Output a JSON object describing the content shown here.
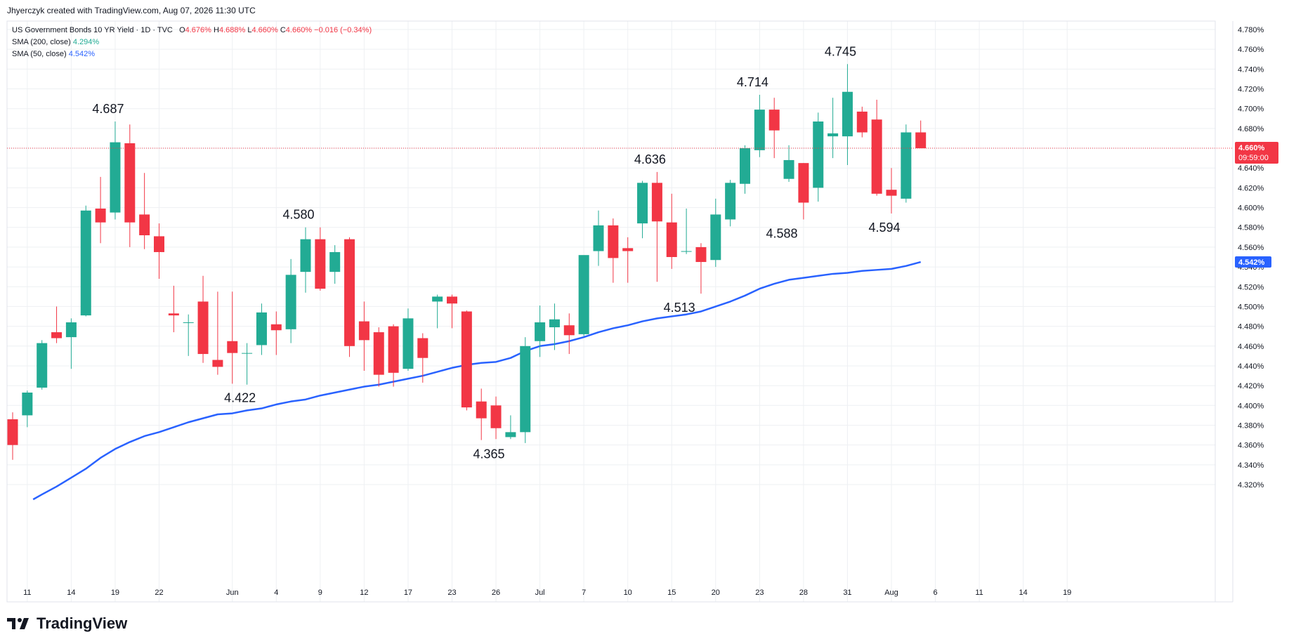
{
  "header": {
    "credit": "Jhyerczyk created with TradingView.com, Aug 07, 2026 11:30 UTC"
  },
  "legend": {
    "symbol": "US Government Bonds 10 YR Yield · 1D · TVC",
    "o_label": "O",
    "o_value": "4.676%",
    "h_label": "H",
    "h_value": "4.688%",
    "l_label": "L",
    "l_value": "4.660%",
    "c_label": "C",
    "c_value": "4.660%",
    "change": "−0.016 (−0.34%)",
    "sma200_label": "SMA (200, close)",
    "sma200_value": "4.294%",
    "sma50_label": "SMA (50, close)",
    "sma50_value": "4.542%"
  },
  "footer": {
    "brand": "TradingView"
  },
  "colors": {
    "up": "#22ab94",
    "down": "#f23645",
    "sma50": "#2962ff",
    "grid": "#eef0f3"
  },
  "price_tag": {
    "price": "4.660%",
    "countdown": "09:59:00"
  },
  "sma_tag": "4.542%",
  "chart_data": {
    "type": "candlestick",
    "y_unit": "%",
    "ylim": [
      4.305,
      4.79
    ],
    "yticks": [
      "4.320%",
      "4.340%",
      "4.360%",
      "4.380%",
      "4.400%",
      "4.420%",
      "4.440%",
      "4.460%",
      "4.480%",
      "4.500%",
      "4.520%",
      "4.540%",
      "4.560%",
      "4.580%",
      "4.600%",
      "4.620%",
      "4.640%",
      "4.660%",
      "4.680%",
      "4.700%",
      "4.720%",
      "4.740%",
      "4.760%",
      "4.780%"
    ],
    "xticks": [
      {
        "i": 1,
        "label": "11"
      },
      {
        "i": 4,
        "label": "14"
      },
      {
        "i": 7,
        "label": "19"
      },
      {
        "i": 10,
        "label": "22"
      },
      {
        "i": 15,
        "label": "Jun"
      },
      {
        "i": 18,
        "label": "4"
      },
      {
        "i": 21,
        "label": "9"
      },
      {
        "i": 24,
        "label": "12"
      },
      {
        "i": 27,
        "label": "17"
      },
      {
        "i": 30,
        "label": "23"
      },
      {
        "i": 33,
        "label": "26"
      },
      {
        "i": 36,
        "label": "Jul"
      },
      {
        "i": 39,
        "label": "7"
      },
      {
        "i": 42,
        "label": "10"
      },
      {
        "i": 45,
        "label": "15"
      },
      {
        "i": 48,
        "label": "20"
      },
      {
        "i": 51,
        "label": "23"
      },
      {
        "i": 54,
        "label": "28"
      },
      {
        "i": 57,
        "label": "31"
      },
      {
        "i": 60,
        "label": "Aug"
      },
      {
        "i": 63,
        "label": "6"
      },
      {
        "i": 66,
        "label": "11"
      },
      {
        "i": 69,
        "label": "14"
      },
      {
        "i": 72,
        "label": "19"
      }
    ],
    "candles": [
      {
        "o": 4.386,
        "h": 4.393,
        "l": 4.345,
        "c": 4.36
      },
      {
        "o": 4.39,
        "h": 4.415,
        "l": 4.378,
        "c": 4.413
      },
      {
        "o": 4.418,
        "h": 4.466,
        "l": 4.416,
        "c": 4.463
      },
      {
        "o": 4.474,
        "h": 4.5,
        "l": 4.463,
        "c": 4.468
      },
      {
        "o": 4.469,
        "h": 4.488,
        "l": 4.437,
        "c": 4.484
      },
      {
        "o": 4.491,
        "h": 4.602,
        "l": 4.49,
        "c": 4.597
      },
      {
        "o": 4.599,
        "h": 4.631,
        "l": 4.564,
        "c": 4.585
      },
      {
        "o": 4.595,
        "h": 4.687,
        "l": 4.588,
        "c": 4.666
      },
      {
        "o": 4.665,
        "h": 4.684,
        "l": 4.56,
        "c": 4.585
      },
      {
        "o": 4.593,
        "h": 4.635,
        "l": 4.558,
        "c": 4.572
      },
      {
        "o": 4.571,
        "h": 4.584,
        "l": 4.528,
        "c": 4.555
      },
      {
        "o": 4.493,
        "h": 4.521,
        "l": 4.474,
        "c": 4.491
      },
      {
        "o": 4.484,
        "h": 4.492,
        "l": 4.45,
        "c": 4.484
      },
      {
        "o": 4.505,
        "h": 4.531,
        "l": 4.443,
        "c": 4.452
      },
      {
        "o": 4.446,
        "h": 4.515,
        "l": 4.431,
        "c": 4.439
      },
      {
        "o": 4.465,
        "h": 4.515,
        "l": 4.422,
        "c": 4.453
      },
      {
        "o": 4.453,
        "h": 4.463,
        "l": 4.421,
        "c": 4.453
      },
      {
        "o": 4.461,
        "h": 4.503,
        "l": 4.451,
        "c": 4.494
      },
      {
        "o": 4.482,
        "h": 4.495,
        "l": 4.451,
        "c": 4.476
      },
      {
        "o": 4.477,
        "h": 4.548,
        "l": 4.463,
        "c": 4.532
      },
      {
        "o": 4.535,
        "h": 4.58,
        "l": 4.514,
        "c": 4.568
      },
      {
        "o": 4.568,
        "h": 4.58,
        "l": 4.516,
        "c": 4.518
      },
      {
        "o": 4.535,
        "h": 4.562,
        "l": 4.523,
        "c": 4.555
      },
      {
        "o": 4.568,
        "h": 4.57,
        "l": 4.449,
        "c": 4.46
      },
      {
        "o": 4.485,
        "h": 4.505,
        "l": 4.435,
        "c": 4.466
      },
      {
        "o": 4.474,
        "h": 4.479,
        "l": 4.419,
        "c": 4.431
      },
      {
        "o": 4.48,
        "h": 4.482,
        "l": 4.419,
        "c": 4.433
      },
      {
        "o": 4.437,
        "h": 4.498,
        "l": 4.435,
        "c": 4.488
      },
      {
        "o": 4.468,
        "h": 4.473,
        "l": 4.423,
        "c": 4.448
      },
      {
        "o": 4.505,
        "h": 4.512,
        "l": 4.478,
        "c": 4.51
      },
      {
        "o": 4.51,
        "h": 4.512,
        "l": 4.478,
        "c": 4.503
      },
      {
        "o": 4.495,
        "h": 4.496,
        "l": 4.395,
        "c": 4.398
      },
      {
        "o": 4.404,
        "h": 4.417,
        "l": 4.365,
        "c": 4.387
      },
      {
        "o": 4.4,
        "h": 4.409,
        "l": 4.366,
        "c": 4.377
      },
      {
        "o": 4.368,
        "h": 4.39,
        "l": 4.366,
        "c": 4.373
      },
      {
        "o": 4.373,
        "h": 4.469,
        "l": 4.362,
        "c": 4.46
      },
      {
        "o": 4.465,
        "h": 4.501,
        "l": 4.449,
        "c": 4.484
      },
      {
        "o": 4.479,
        "h": 4.503,
        "l": 4.456,
        "c": 4.487
      },
      {
        "o": 4.481,
        "h": 4.493,
        "l": 4.452,
        "c": 4.471
      },
      {
        "o": 4.472,
        "h": 4.55,
        "l": 4.47,
        "c": 4.552
      },
      {
        "o": 4.556,
        "h": 4.597,
        "l": 4.541,
        "c": 4.582
      },
      {
        "o": 4.582,
        "h": 4.589,
        "l": 4.524,
        "c": 4.549
      },
      {
        "o": 4.559,
        "h": 4.57,
        "l": 4.524,
        "c": 4.556
      },
      {
        "o": 4.584,
        "h": 4.627,
        "l": 4.569,
        "c": 4.625
      },
      {
        "o": 4.625,
        "h": 4.636,
        "l": 4.525,
        "c": 4.586
      },
      {
        "o": 4.585,
        "h": 4.614,
        "l": 4.538,
        "c": 4.55
      },
      {
        "o": 4.556,
        "h": 4.599,
        "l": 4.553,
        "c": 4.556
      },
      {
        "o": 4.56,
        "h": 4.564,
        "l": 4.513,
        "c": 4.545
      },
      {
        "o": 4.547,
        "h": 4.609,
        "l": 4.54,
        "c": 4.593
      },
      {
        "o": 4.588,
        "h": 4.628,
        "l": 4.581,
        "c": 4.625
      },
      {
        "o": 4.624,
        "h": 4.663,
        "l": 4.614,
        "c": 4.66
      },
      {
        "o": 4.658,
        "h": 4.714,
        "l": 4.651,
        "c": 4.699
      },
      {
        "o": 4.699,
        "h": 4.711,
        "l": 4.65,
        "c": 4.678
      },
      {
        "o": 4.629,
        "h": 4.663,
        "l": 4.626,
        "c": 4.648
      },
      {
        "o": 4.645,
        "h": 4.645,
        "l": 4.588,
        "c": 4.605
      },
      {
        "o": 4.62,
        "h": 4.696,
        "l": 4.606,
        "c": 4.687
      },
      {
        "o": 4.672,
        "h": 4.711,
        "l": 4.65,
        "c": 4.675
      },
      {
        "o": 4.672,
        "h": 4.745,
        "l": 4.643,
        "c": 4.717
      },
      {
        "o": 4.697,
        "h": 4.702,
        "l": 4.671,
        "c": 4.676
      },
      {
        "o": 4.689,
        "h": 4.709,
        "l": 4.612,
        "c": 4.614
      },
      {
        "o": 4.618,
        "h": 4.64,
        "l": 4.594,
        "c": 4.612
      },
      {
        "o": 4.609,
        "h": 4.684,
        "l": 4.605,
        "c": 4.676
      },
      {
        "o": 4.676,
        "h": 4.688,
        "l": 4.66,
        "c": 4.66
      }
    ],
    "sma50": [
      [
        1.4,
        4.305
      ],
      [
        2,
        4.31
      ],
      [
        3,
        4.318
      ],
      [
        4,
        4.327
      ],
      [
        5,
        4.336
      ],
      [
        6,
        4.347
      ],
      [
        7,
        4.356
      ],
      [
        8,
        4.363
      ],
      [
        9,
        4.369
      ],
      [
        10,
        4.373
      ],
      [
        11,
        4.378
      ],
      [
        12,
        4.383
      ],
      [
        13,
        4.387
      ],
      [
        14,
        4.391
      ],
      [
        15,
        4.392
      ],
      [
        16,
        4.395
      ],
      [
        17,
        4.397
      ],
      [
        18,
        4.401
      ],
      [
        19,
        4.404
      ],
      [
        20,
        4.406
      ],
      [
        21,
        4.41
      ],
      [
        22,
        4.413
      ],
      [
        23,
        4.416
      ],
      [
        24,
        4.419
      ],
      [
        25,
        4.421
      ],
      [
        26,
        4.424
      ],
      [
        27,
        4.427
      ],
      [
        28,
        4.43
      ],
      [
        29,
        4.434
      ],
      [
        30,
        4.438
      ],
      [
        31,
        4.441
      ],
      [
        32,
        4.443
      ],
      [
        33,
        4.444
      ],
      [
        34,
        4.448
      ],
      [
        35,
        4.455
      ],
      [
        36,
        4.46
      ],
      [
        37,
        4.462
      ],
      [
        38,
        4.465
      ],
      [
        39,
        4.469
      ],
      [
        40,
        4.474
      ],
      [
        41,
        4.478
      ],
      [
        42,
        4.481
      ],
      [
        43,
        4.485
      ],
      [
        44,
        4.488
      ],
      [
        45,
        4.49
      ],
      [
        46,
        4.492
      ],
      [
        47,
        4.495
      ],
      [
        48,
        4.5
      ],
      [
        49,
        4.505
      ],
      [
        50,
        4.511
      ],
      [
        51,
        4.518
      ],
      [
        52,
        4.523
      ],
      [
        53,
        4.527
      ],
      [
        54,
        4.529
      ],
      [
        55,
        4.531
      ],
      [
        56,
        4.533
      ],
      [
        57,
        4.534
      ],
      [
        58,
        4.536
      ],
      [
        59,
        4.537
      ],
      [
        60,
        4.538
      ],
      [
        61,
        4.541
      ],
      [
        62,
        4.545
      ]
    ],
    "annotations": [
      {
        "i": 7,
        "price": 4.687,
        "pos": "above",
        "text": "4.687"
      },
      {
        "i": 16,
        "price": 4.422,
        "pos": "below",
        "text": "4.422"
      },
      {
        "i": 20,
        "price": 4.58,
        "pos": "above",
        "text": "4.580"
      },
      {
        "i": 33,
        "price": 4.365,
        "pos": "below",
        "text": "4.365"
      },
      {
        "i": 44,
        "price": 4.636,
        "pos": "above",
        "text": "4.636"
      },
      {
        "i": 46,
        "price": 4.513,
        "pos": "below",
        "text": "4.513"
      },
      {
        "i": 51,
        "price": 4.714,
        "pos": "above",
        "text": "4.714"
      },
      {
        "i": 53,
        "price": 4.588,
        "pos": "below",
        "text": "4.588"
      },
      {
        "i": 57,
        "price": 4.745,
        "pos": "above",
        "text": "4.745"
      },
      {
        "i": 60,
        "price": 4.594,
        "pos": "below",
        "text": "4.594"
      }
    ]
  }
}
